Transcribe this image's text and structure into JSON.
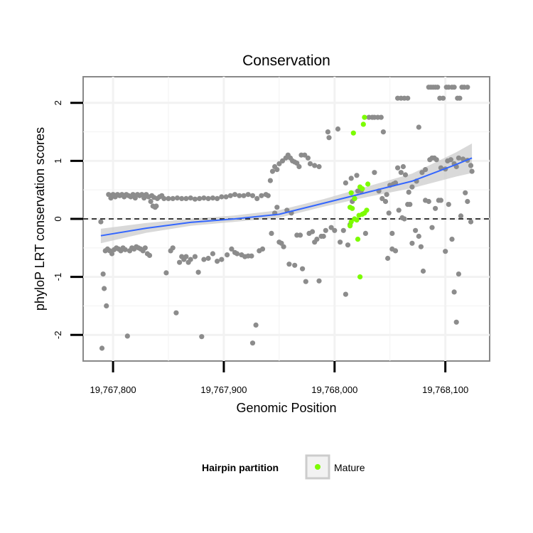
{
  "chart_data": {
    "type": "scatter",
    "title": "Conservation",
    "xlabel": "Genomic Position",
    "ylabel": "phyloP LRT conservation scores",
    "xlim": [
      19767773,
      19768140
    ],
    "ylim": [
      -2.45,
      2.45
    ],
    "x_ticks": [
      19767800,
      19767900,
      19768000,
      19768100
    ],
    "x_tick_labels": [
      "19,767,800",
      "19,767,900",
      "19,768,000",
      "19,768,100"
    ],
    "y_ticks": [
      -2,
      -1,
      0,
      1,
      2
    ],
    "y_tick_labels": [
      "-2",
      "-1",
      "0",
      "1",
      "2"
    ],
    "grid": true,
    "reference_line": {
      "y": 0,
      "style": "dashed",
      "color": "#000000"
    },
    "legend": {
      "title": "Hairpin partition",
      "position": "bottom",
      "entries": [
        {
          "label": "Mature",
          "color": "#7CFC00"
        }
      ]
    },
    "colors": {
      "other": "#8c8c8c",
      "mature": "#7CFC00",
      "trend": "#3366ff",
      "band": "#cccccc",
      "panel_border": "#888888",
      "grid": "#f2f2f2"
    },
    "trend": {
      "method": "linear fit with confidence band",
      "x": [
        19767789,
        19767830,
        19767870,
        19767910,
        19767950,
        19767990,
        19768030,
        19768070,
        19768110,
        19768124
      ],
      "y": [
        -0.29,
        -0.16,
        -0.06,
        0.0,
        0.08,
        0.27,
        0.46,
        0.65,
        0.94,
        1.05
      ],
      "ci_lower": [
        -0.42,
        -0.24,
        -0.12,
        -0.05,
        0.02,
        0.21,
        0.38,
        0.53,
        0.73,
        0.79
      ],
      "ci_upper": [
        -0.17,
        -0.07,
        0.0,
        0.06,
        0.15,
        0.34,
        0.56,
        0.78,
        1.15,
        1.3
      ]
    },
    "series": [
      {
        "group": "other",
        "points": [
          [
            19767789,
            -0.05
          ],
          [
            19767790,
            -2.23
          ],
          [
            19767791,
            -0.95
          ],
          [
            19767792,
            -1.2
          ],
          [
            19767793,
            -0.55
          ],
          [
            19767794,
            -1.5
          ],
          [
            19767795,
            -0.52
          ],
          [
            19767797,
            -0.55
          ],
          [
            19767799,
            -0.6
          ],
          [
            19767801,
            -0.53
          ],
          [
            19767803,
            -0.5
          ],
          [
            19767805,
            -0.52
          ],
          [
            19767807,
            -0.55
          ],
          [
            19767809,
            -0.5
          ],
          [
            19767811,
            -0.53
          ],
          [
            19767813,
            -2.02
          ],
          [
            19767815,
            -0.55
          ],
          [
            19767817,
            -0.5
          ],
          [
            19767819,
            -0.52
          ],
          [
            19767821,
            -0.48
          ],
          [
            19767823,
            -0.5
          ],
          [
            19767825,
            -0.52
          ],
          [
            19767827,
            -0.55
          ],
          [
            19767829,
            -0.5
          ],
          [
            19767831,
            -0.6
          ],
          [
            19767833,
            -0.63
          ],
          [
            19767796,
            0.42
          ],
          [
            19767798,
            0.36
          ],
          [
            19767800,
            0.42
          ],
          [
            19767802,
            0.38
          ],
          [
            19767804,
            0.42
          ],
          [
            19767806,
            0.4
          ],
          [
            19767808,
            0.42
          ],
          [
            19767810,
            0.38
          ],
          [
            19767812,
            0.42
          ],
          [
            19767814,
            0.4
          ],
          [
            19767816,
            0.38
          ],
          [
            19767818,
            0.42
          ],
          [
            19767820,
            0.36
          ],
          [
            19767822,
            0.42
          ],
          [
            19767824,
            0.4
          ],
          [
            19767826,
            0.42
          ],
          [
            19767828,
            0.36
          ],
          [
            19767830,
            0.42
          ],
          [
            19767832,
            0.38
          ],
          [
            19767834,
            0.3
          ],
          [
            19767836,
            0.22
          ],
          [
            19767838,
            0.2
          ],
          [
            19767840,
            0.35
          ],
          [
            19767842,
            0.38
          ],
          [
            19767844,
            0.4
          ],
          [
            19767846,
            0.35
          ],
          [
            19767848,
            -0.93
          ],
          [
            19767852,
            -0.55
          ],
          [
            19767854,
            -0.5
          ],
          [
            19767857,
            -1.62
          ],
          [
            19767860,
            -0.75
          ],
          [
            19767862,
            -0.65
          ],
          [
            19767864,
            -0.7
          ],
          [
            19767866,
            -0.65
          ],
          [
            19767868,
            -0.75
          ],
          [
            19767870,
            -0.7
          ],
          [
            19767874,
            -0.65
          ],
          [
            19767877,
            -0.92
          ],
          [
            19767880,
            -2.03
          ],
          [
            19767882,
            -0.7
          ],
          [
            19767886,
            -0.68
          ],
          [
            19767890,
            -0.6
          ],
          [
            19767894,
            -0.73
          ],
          [
            19767898,
            -0.7
          ],
          [
            19767903,
            -0.62
          ],
          [
            19767907,
            -0.52
          ],
          [
            19767910,
            -0.58
          ],
          [
            19767912,
            -0.6
          ],
          [
            19767916,
            -0.62
          ],
          [
            19767919,
            -0.65
          ],
          [
            19767922,
            -0.64
          ],
          [
            19767925,
            -0.64
          ],
          [
            19767926,
            -2.14
          ],
          [
            19767929,
            -1.83
          ],
          [
            19767932,
            -0.55
          ],
          [
            19767935,
            -0.52
          ],
          [
            19767850,
            0.35
          ],
          [
            19767854,
            0.35
          ],
          [
            19767858,
            0.36
          ],
          [
            19767862,
            0.35
          ],
          [
            19767866,
            0.35
          ],
          [
            19767870,
            0.36
          ],
          [
            19767874,
            0.34
          ],
          [
            19767878,
            0.35
          ],
          [
            19767882,
            0.36
          ],
          [
            19767886,
            0.35
          ],
          [
            19767890,
            0.36
          ],
          [
            19767894,
            0.35
          ],
          [
            19767898,
            0.38
          ],
          [
            19767902,
            0.38
          ],
          [
            19767906,
            0.4
          ],
          [
            19767910,
            0.42
          ],
          [
            19767914,
            0.4
          ],
          [
            19767918,
            0.4
          ],
          [
            19767922,
            0.42
          ],
          [
            19767926,
            0.4
          ],
          [
            19767930,
            0.35
          ],
          [
            19767934,
            0.4
          ],
          [
            19767938,
            0.42
          ],
          [
            19767940,
            0.4
          ],
          [
            19767942,
            0.66
          ],
          [
            19767944,
            0.82
          ],
          [
            19767946,
            0.9
          ],
          [
            19767948,
            0.85
          ],
          [
            19767950,
            0.95
          ],
          [
            19767953,
            1.0
          ],
          [
            19767956,
            1.05
          ],
          [
            19767958,
            1.1
          ],
          [
            19767960,
            1.05
          ],
          [
            19767962,
            1.0
          ],
          [
            19767964,
            0.98
          ],
          [
            19767966,
            0.96
          ],
          [
            19767968,
            0.9
          ],
          [
            19767970,
            1.1
          ],
          [
            19767973,
            1.1
          ],
          [
            19767976,
            1.05
          ],
          [
            19767978,
            0.95
          ],
          [
            19767982,
            0.92
          ],
          [
            19767986,
            0.9
          ],
          [
            19767943,
            -0.25
          ],
          [
            19767946,
            0.1
          ],
          [
            19767948,
            0.2
          ],
          [
            19767950,
            -0.4
          ],
          [
            19767952,
            -0.42
          ],
          [
            19767954,
            -0.48
          ],
          [
            19767957,
            0.15
          ],
          [
            19767959,
            -0.78
          ],
          [
            19767961,
            0.1
          ],
          [
            19767964,
            -0.8
          ],
          [
            19767966,
            -0.28
          ],
          [
            19767969,
            -0.28
          ],
          [
            19767971,
            -0.86
          ],
          [
            19767974,
            -1.08
          ],
          [
            19767977,
            -0.25
          ],
          [
            19767980,
            -0.22
          ],
          [
            19767982,
            -0.4
          ],
          [
            19767984,
            -0.35
          ],
          [
            19767986,
            -1.07
          ],
          [
            19767988,
            -0.3
          ],
          [
            19767990,
            -0.3
          ],
          [
            19767992,
            -0.2
          ],
          [
            19767994,
            1.5
          ],
          [
            19767995,
            1.4
          ],
          [
            19767997,
            -0.15
          ],
          [
            19768000,
            -0.2
          ],
          [
            19768003,
            1.55
          ],
          [
            19768005,
            -0.4
          ],
          [
            19768008,
            -0.2
          ],
          [
            19768010,
            -1.3
          ],
          [
            19768012,
            -0.45
          ],
          [
            19768014,
            -0.1
          ],
          [
            19768016,
            0.3
          ],
          [
            19768018,
            0.35
          ],
          [
            19768021,
            0.48
          ],
          [
            19768024,
            0.48
          ],
          [
            19768028,
            -0.25
          ],
          [
            19768031,
            1.75
          ],
          [
            19768034,
            1.75
          ],
          [
            19768036,
            1.75
          ],
          [
            19768039,
            1.75
          ],
          [
            19768042,
            1.75
          ],
          [
            19768044,
            1.5
          ],
          [
            19768047,
            0.42
          ],
          [
            19768050,
            0.58
          ],
          [
            19768053,
            0.6
          ],
          [
            19768055,
            0.62
          ],
          [
            19768057,
            0.88
          ],
          [
            19768060,
            0.8
          ],
          [
            19768062,
            0.9
          ],
          [
            19768064,
            0.76
          ],
          [
            19768067,
            0.46
          ],
          [
            19768070,
            0.55
          ],
          [
            19768074,
            0.65
          ],
          [
            19768076,
            1.58
          ],
          [
            19768079,
            0.8
          ],
          [
            19768082,
            0.85
          ],
          [
            19768086,
            1.02
          ],
          [
            19768088,
            1.05
          ],
          [
            19768090,
            1.05
          ],
          [
            19768092,
            1.02
          ],
          [
            19768096,
            0.88
          ],
          [
            19768100,
            0.86
          ],
          [
            19768102,
            1.0
          ],
          [
            19768105,
            1.02
          ],
          [
            19768108,
            0.95
          ],
          [
            19768110,
            0.9
          ],
          [
            19768112,
            1.05
          ],
          [
            19768116,
            1.03
          ],
          [
            19768120,
            1.01
          ],
          [
            19768123,
            0.92
          ],
          [
            19768124,
            0.82
          ],
          [
            19768040,
            0.48
          ],
          [
            19768043,
            0.35
          ],
          [
            19768046,
            0.3
          ],
          [
            19768049,
            0.1
          ],
          [
            19768052,
            -0.25
          ],
          [
            19768055,
            -0.55
          ],
          [
            19768058,
            0.15
          ],
          [
            19768061,
            0.02
          ],
          [
            19768063,
            0.0
          ],
          [
            19768066,
            0.25
          ],
          [
            19768068,
            0.25
          ],
          [
            19768070,
            -0.42
          ],
          [
            19768073,
            -0.2
          ],
          [
            19768076,
            -0.3
          ],
          [
            19768078,
            -0.48
          ],
          [
            19768080,
            -0.9
          ],
          [
            19768082,
            0.32
          ],
          [
            19768085,
            0.3
          ],
          [
            19768088,
            -0.15
          ],
          [
            19768091,
            0.18
          ],
          [
            19768094,
            0.32
          ],
          [
            19768096,
            0.32
          ],
          [
            19768100,
            -0.56
          ],
          [
            19768103,
            0.25
          ],
          [
            19768106,
            -0.35
          ],
          [
            19768108,
            -1.26
          ],
          [
            19768110,
            -1.78
          ],
          [
            19768112,
            -0.95
          ],
          [
            19768114,
            0.05
          ],
          [
            19768118,
            0.45
          ],
          [
            19768120,
            0.3
          ],
          [
            19768123,
            -0.05
          ],
          [
            19768010,
            0.62
          ],
          [
            19768015,
            0.7
          ],
          [
            19768020,
            0.75
          ],
          [
            19768036,
            0.8
          ],
          [
            19768048,
            -0.68
          ],
          [
            19768052,
            -0.52
          ],
          [
            19768057,
            2.08
          ],
          [
            19768060,
            2.08
          ],
          [
            19768063,
            2.08
          ],
          [
            19768066,
            2.08
          ],
          [
            19768085,
            2.27
          ],
          [
            19768087,
            2.27
          ],
          [
            19768089,
            2.27
          ],
          [
            19768091,
            2.27
          ],
          [
            19768093,
            2.27
          ],
          [
            19768095,
            2.08
          ],
          [
            19768098,
            2.08
          ],
          [
            19768101,
            2.27
          ],
          [
            19768103,
            2.27
          ],
          [
            19768106,
            2.27
          ],
          [
            19768108,
            2.27
          ],
          [
            19768111,
            2.08
          ],
          [
            19768113,
            2.08
          ],
          [
            19768115,
            2.27
          ],
          [
            19768117,
            2.27
          ],
          [
            19768120,
            2.27
          ],
          [
            19767835,
            0.4
          ],
          [
            19767837,
            0.37
          ],
          [
            19767839,
            0.22
          ]
        ]
      },
      {
        "group": "Mature",
        "points": [
          [
            19768017,
            1.48
          ],
          [
            19768026,
            1.63
          ],
          [
            19768027,
            1.75
          ],
          [
            19768030,
            0.6
          ],
          [
            19768023,
            0.55
          ],
          [
            19768025,
            0.52
          ],
          [
            19768015,
            0.45
          ],
          [
            19768018,
            0.35
          ],
          [
            19768014,
            0.2
          ],
          [
            19768016,
            0.18
          ],
          [
            19768015,
            -0.05
          ],
          [
            19768014,
            -0.12
          ],
          [
            19768018,
            0.0
          ],
          [
            19768020,
            -0.02
          ],
          [
            19768022,
            0.06
          ],
          [
            19768025,
            0.08
          ],
          [
            19768027,
            0.1
          ],
          [
            19768029,
            0.15
          ],
          [
            19768021,
            -0.35
          ],
          [
            19768023,
            -1.0
          ]
        ]
      }
    ]
  }
}
